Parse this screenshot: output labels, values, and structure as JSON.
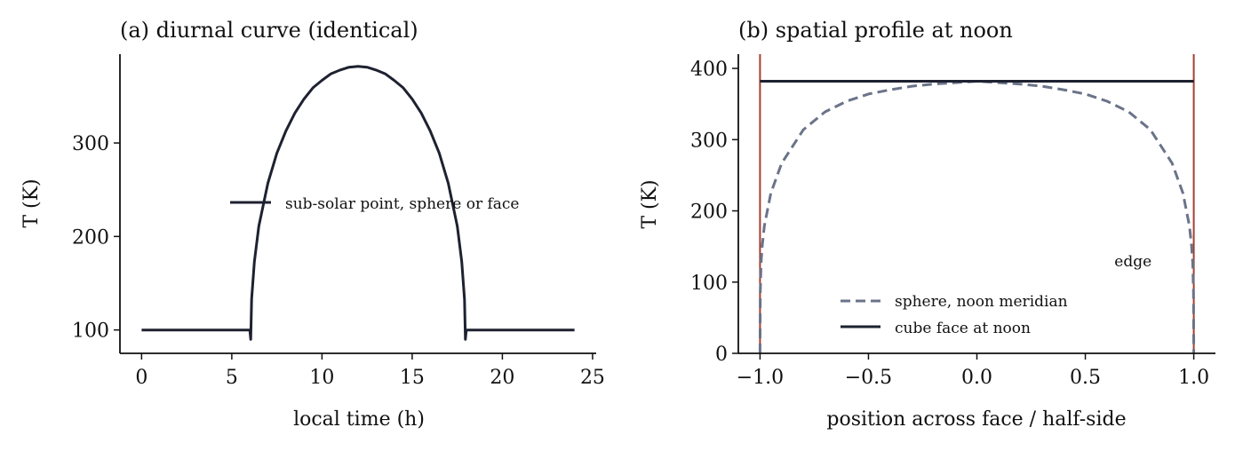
{
  "colors": {
    "dark": "#1e2130",
    "slate": "#6b7389",
    "edge_red": "#a33f2f",
    "axis": "#111111"
  },
  "chart_data": [
    {
      "type": "line",
      "title": "(a) diurnal curve (identical)",
      "xlabel": "local time (h)",
      "ylabel": "T (K)",
      "xlim": [
        -1.2,
        25.2
      ],
      "ylim": [
        75,
        395
      ],
      "xticks": [
        0,
        5,
        10,
        15,
        20,
        25
      ],
      "xtick_labels": [
        "0",
        "5",
        "10",
        "15",
        "20",
        "25"
      ],
      "yticks": [
        100,
        200,
        300
      ],
      "ytick_labels": [
        "100",
        "200",
        "300"
      ],
      "grid": false,
      "legend_position": "center-right",
      "series": [
        {
          "name": "sub-solar point, sphere or face",
          "style": "solid",
          "color": "#1e2130",
          "x": [
            0,
            6.0,
            6.05,
            6.1,
            6.25,
            6.5,
            7,
            7.5,
            8,
            8.5,
            9,
            9.5,
            10,
            10.5,
            11,
            11.5,
            12,
            12.5,
            13,
            13.5,
            14,
            14.5,
            15,
            15.5,
            16,
            16.5,
            17,
            17.5,
            17.75,
            17.9,
            17.95,
            18.0,
            24
          ],
          "y": [
            100,
            100,
            90,
            133,
            173,
            211,
            257,
            289,
            313,
            332,
            347,
            359,
            367,
            374,
            378,
            381,
            382,
            381,
            378,
            374,
            367,
            359,
            347,
            332,
            313,
            289,
            257,
            211,
            173,
            133,
            90,
            100,
            100
          ]
        }
      ]
    },
    {
      "type": "line",
      "title": "(b) spatial profile at noon",
      "xlabel": "position across face / half-side",
      "ylabel": "T (K)",
      "xlim": [
        -1.1,
        1.1
      ],
      "ylim": [
        0,
        420
      ],
      "xticks": [
        -1.0,
        -0.5,
        0.0,
        0.5,
        1.0
      ],
      "xtick_labels": [
        "−1.0",
        "−0.5",
        "0.0",
        "0.5",
        "1.0"
      ],
      "yticks": [
        0,
        100,
        200,
        300,
        400
      ],
      "ytick_labels": [
        "0",
        "100",
        "200",
        "300",
        "400"
      ],
      "grid": false,
      "legend_position": "lower-center",
      "edge_lines": [
        -1.0,
        1.0
      ],
      "annotations": [
        {
          "text": "edge",
          "x": 0.72,
          "y": 122
        }
      ],
      "series": [
        {
          "name": "sphere, noon meridian",
          "style": "dashed",
          "color": "#6b7389",
          "x": [
            -1.0,
            -0.999,
            -0.995,
            -0.99,
            -0.98,
            -0.95,
            -0.9,
            -0.8,
            -0.7,
            -0.6,
            -0.5,
            -0.4,
            -0.3,
            -0.2,
            -0.1,
            0.0,
            0.1,
            0.2,
            0.3,
            0.4,
            0.5,
            0.6,
            0.7,
            0.8,
            0.9,
            0.95,
            0.98,
            0.99,
            0.995,
            0.999,
            1.0
          ],
          "y": [
            0,
            85,
            127,
            151,
            179,
            225,
            267,
            314,
            339,
            354,
            364,
            370,
            375,
            378,
            380,
            382,
            380,
            378,
            375,
            370,
            364,
            354,
            339,
            314,
            267,
            225,
            179,
            151,
            127,
            85,
            0
          ]
        },
        {
          "name": "cube face at noon",
          "style": "solid",
          "color": "#1e2130",
          "x": [
            -1.0,
            1.0
          ],
          "y": [
            382,
            382
          ]
        }
      ]
    }
  ]
}
